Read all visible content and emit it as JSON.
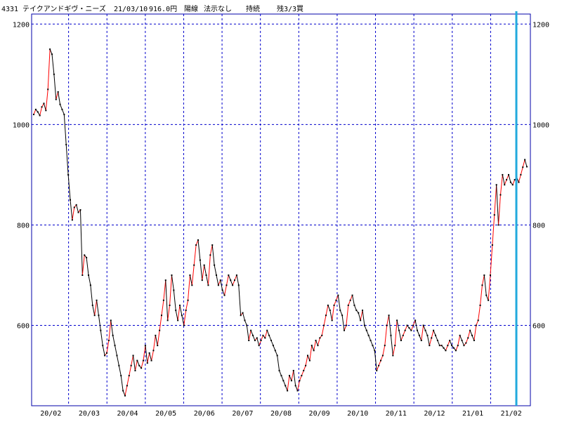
{
  "header": {
    "code": "4331",
    "name": "テイクアンドギヴ・ニーズ",
    "date": "21/03/10",
    "price": "916.0円",
    "candle": "陽線",
    "signal": "法示なし",
    "status": "持続",
    "remaining": "残3/3買"
  },
  "colors": {
    "up": "#ff0000",
    "down": "#000000",
    "grid": "#0000cc",
    "frame": "#0000aa",
    "marker": "#22aadd"
  },
  "chart_data": {
    "type": "line",
    "ylim": [
      440,
      1220
    ],
    "y_ticks": [
      600,
      800,
      1000,
      1200
    ],
    "x_labels": [
      "20/02",
      "20/03",
      "20/04",
      "20/05",
      "20/06",
      "20/07",
      "20/08",
      "20/09",
      "20/10",
      "20/11",
      "20/12",
      "21/01",
      "21/02"
    ],
    "marker_label": "21/03/10",
    "grid": true,
    "series": [
      {
        "values": [
          1020,
          1030,
          1025,
          1018,
          1035,
          1042,
          1028,
          1070,
          1150,
          1140,
          1100,
          1050,
          1065,
          1040,
          1030,
          1020,
          960,
          900,
          850,
          810,
          835,
          840,
          825,
          830,
          700,
          740,
          735,
          700,
          680,
          640,
          620,
          650,
          620,
          590,
          560,
          540,
          545,
          570,
          610,
          580,
          560,
          540,
          520,
          500,
          470,
          460,
          480,
          500,
          520,
          540,
          510,
          530,
          520,
          515,
          530,
          560,
          525,
          545,
          530,
          550,
          580,
          560,
          590,
          620,
          650,
          690,
          610,
          640,
          700,
          670,
          630,
          610,
          640,
          620,
          600,
          630,
          650,
          700,
          680,
          720,
          760,
          770,
          730,
          690,
          720,
          700,
          680,
          740,
          760,
          720,
          700,
          680,
          690,
          670,
          660,
          680,
          700,
          690,
          680,
          690,
          700,
          680,
          620,
          625,
          610,
          600,
          570,
          590,
          580,
          570,
          575,
          560,
          570,
          580,
          575,
          590,
          580,
          570,
          560,
          550,
          540,
          510,
          500,
          490,
          480,
          470,
          500,
          490,
          510,
          480,
          470,
          490,
          500,
          510,
          520,
          540,
          530,
          560,
          550,
          570,
          560,
          575,
          580,
          600,
          620,
          640,
          630,
          610,
          640,
          650,
          660,
          630,
          620,
          590,
          600,
          640,
          650,
          660,
          640,
          630,
          625,
          610,
          630,
          600,
          590,
          580,
          570,
          560,
          550,
          510,
          520,
          530,
          540,
          560,
          600,
          620,
          580,
          540,
          560,
          610,
          590,
          570,
          580,
          590,
          600,
          595,
          590,
          600,
          610,
          590,
          580,
          570,
          600,
          590,
          580,
          560,
          575,
          590,
          580,
          570,
          560,
          560,
          555,
          550,
          560,
          570,
          560,
          555,
          550,
          560,
          580,
          570,
          560,
          565,
          575,
          590,
          580,
          570,
          600,
          610,
          640,
          680,
          700,
          660,
          650,
          700,
          760,
          820,
          880,
          800,
          860,
          900,
          880,
          890,
          900,
          885,
          880,
          890,
          895,
          885,
          900,
          915,
          930,
          916
        ]
      }
    ]
  }
}
